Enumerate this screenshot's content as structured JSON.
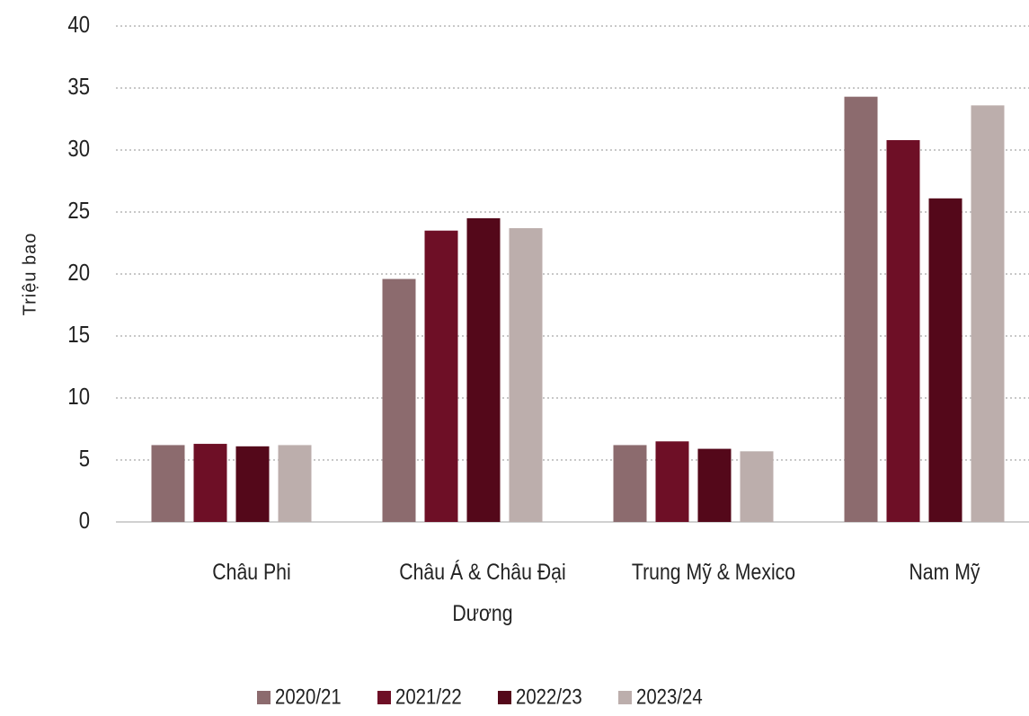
{
  "chart_data": {
    "type": "bar",
    "y_label": "Triệu bao",
    "categories": [
      "Châu Phi",
      "Châu Á & Châu Đại Dương",
      "Trung Mỹ  & Mexico",
      "Nam Mỹ"
    ],
    "series": [
      {
        "name": "2020/21",
        "color": "#8c6b6e",
        "values": [
          6.2,
          19.6,
          6.2,
          34.3
        ]
      },
      {
        "name": "2021/22",
        "color": "#6e0f26",
        "values": [
          6.3,
          23.5,
          6.5,
          30.8
        ]
      },
      {
        "name": "2022/23",
        "color": "#54081a",
        "values": [
          6.1,
          24.5,
          5.9,
          26.1
        ]
      },
      {
        "name": "2023/24",
        "color": "#bcaeac",
        "values": [
          6.2,
          23.7,
          5.7,
          33.6
        ]
      }
    ],
    "ylim": [
      0,
      40
    ],
    "yticks": [
      0,
      5,
      10,
      15,
      20,
      25,
      30,
      35,
      40
    ],
    "grid": true,
    "legend": "bottom"
  }
}
